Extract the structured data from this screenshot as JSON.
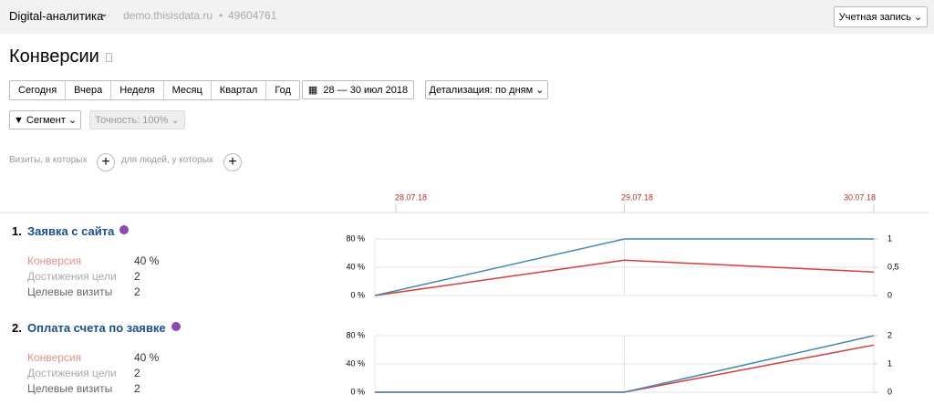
{
  "header": {
    "app": "Digital-аналитика",
    "site": "demo.thisisdata.ru",
    "separator": "•",
    "counter": "49604761",
    "account": "Учетная запись"
  },
  "page_title": "Конверсии",
  "periods": [
    "Сегодня",
    "Вчера",
    "Неделя",
    "Месяц",
    "Квартал",
    "Год"
  ],
  "date_range": "28 — 30 июл 2018",
  "detail": "Детализация: по дням",
  "segment": "Сегмент",
  "accuracy": "Точность: 100%",
  "filters": {
    "visits": "Визиты, в которых",
    "people": "для людей, у которых"
  },
  "chart_data": [
    {
      "type": "line",
      "number": "1.",
      "title": "Заявка с сайта",
      "metrics": [
        {
          "label": "Конверсия",
          "value": "40 %"
        },
        {
          "label": "Достижения цели",
          "value": "2"
        },
        {
          "label": "Целевые визиты",
          "value": "2"
        }
      ],
      "categories": [
        "28.07.18",
        "29.07.18",
        "30.07.18"
      ],
      "series": [
        {
          "color": "#d63c3c",
          "values": [
            0,
            50,
            33.3
          ]
        },
        {
          "color": "#4a86b0",
          "axis": "y2",
          "values": [
            0,
            1,
            1
          ]
        }
      ],
      "ylim": [
        0,
        80
      ],
      "yticks": [
        {
          "value": 0,
          "label": "0 %"
        },
        {
          "value": 40,
          "label": "40 %"
        },
        {
          "value": 80,
          "label": "80 %"
        }
      ],
      "y2lim": [
        0,
        1
      ],
      "y2ticks": [
        0,
        {
          "value": 0.5,
          "label": "0,5"
        },
        1
      ]
    },
    {
      "type": "line",
      "number": "2.",
      "title": "Оплата счета по заявке",
      "metrics": [
        {
          "label": "Конверсия",
          "value": "40 %"
        },
        {
          "label": "Достижения цели",
          "value": "2"
        },
        {
          "label": "Целевые визиты",
          "value": "2"
        }
      ],
      "series": [
        {
          "color": "#d63c3c",
          "values": [
            0,
            0,
            66.7
          ]
        },
        {
          "color": "#4a86b0",
          "axis": "y2",
          "values": [
            0,
            0,
            2
          ]
        }
      ],
      "ylim": [
        0,
        80
      ],
      "yticks": [
        {
          "value": 0,
          "label": "0 %"
        },
        {
          "value": 40,
          "label": "40 %"
        },
        {
          "value": 80,
          "label": "80 %"
        }
      ],
      "y2lim": [
        0,
        2
      ],
      "y2ticks": [
        0,
        1,
        2
      ]
    }
  ]
}
